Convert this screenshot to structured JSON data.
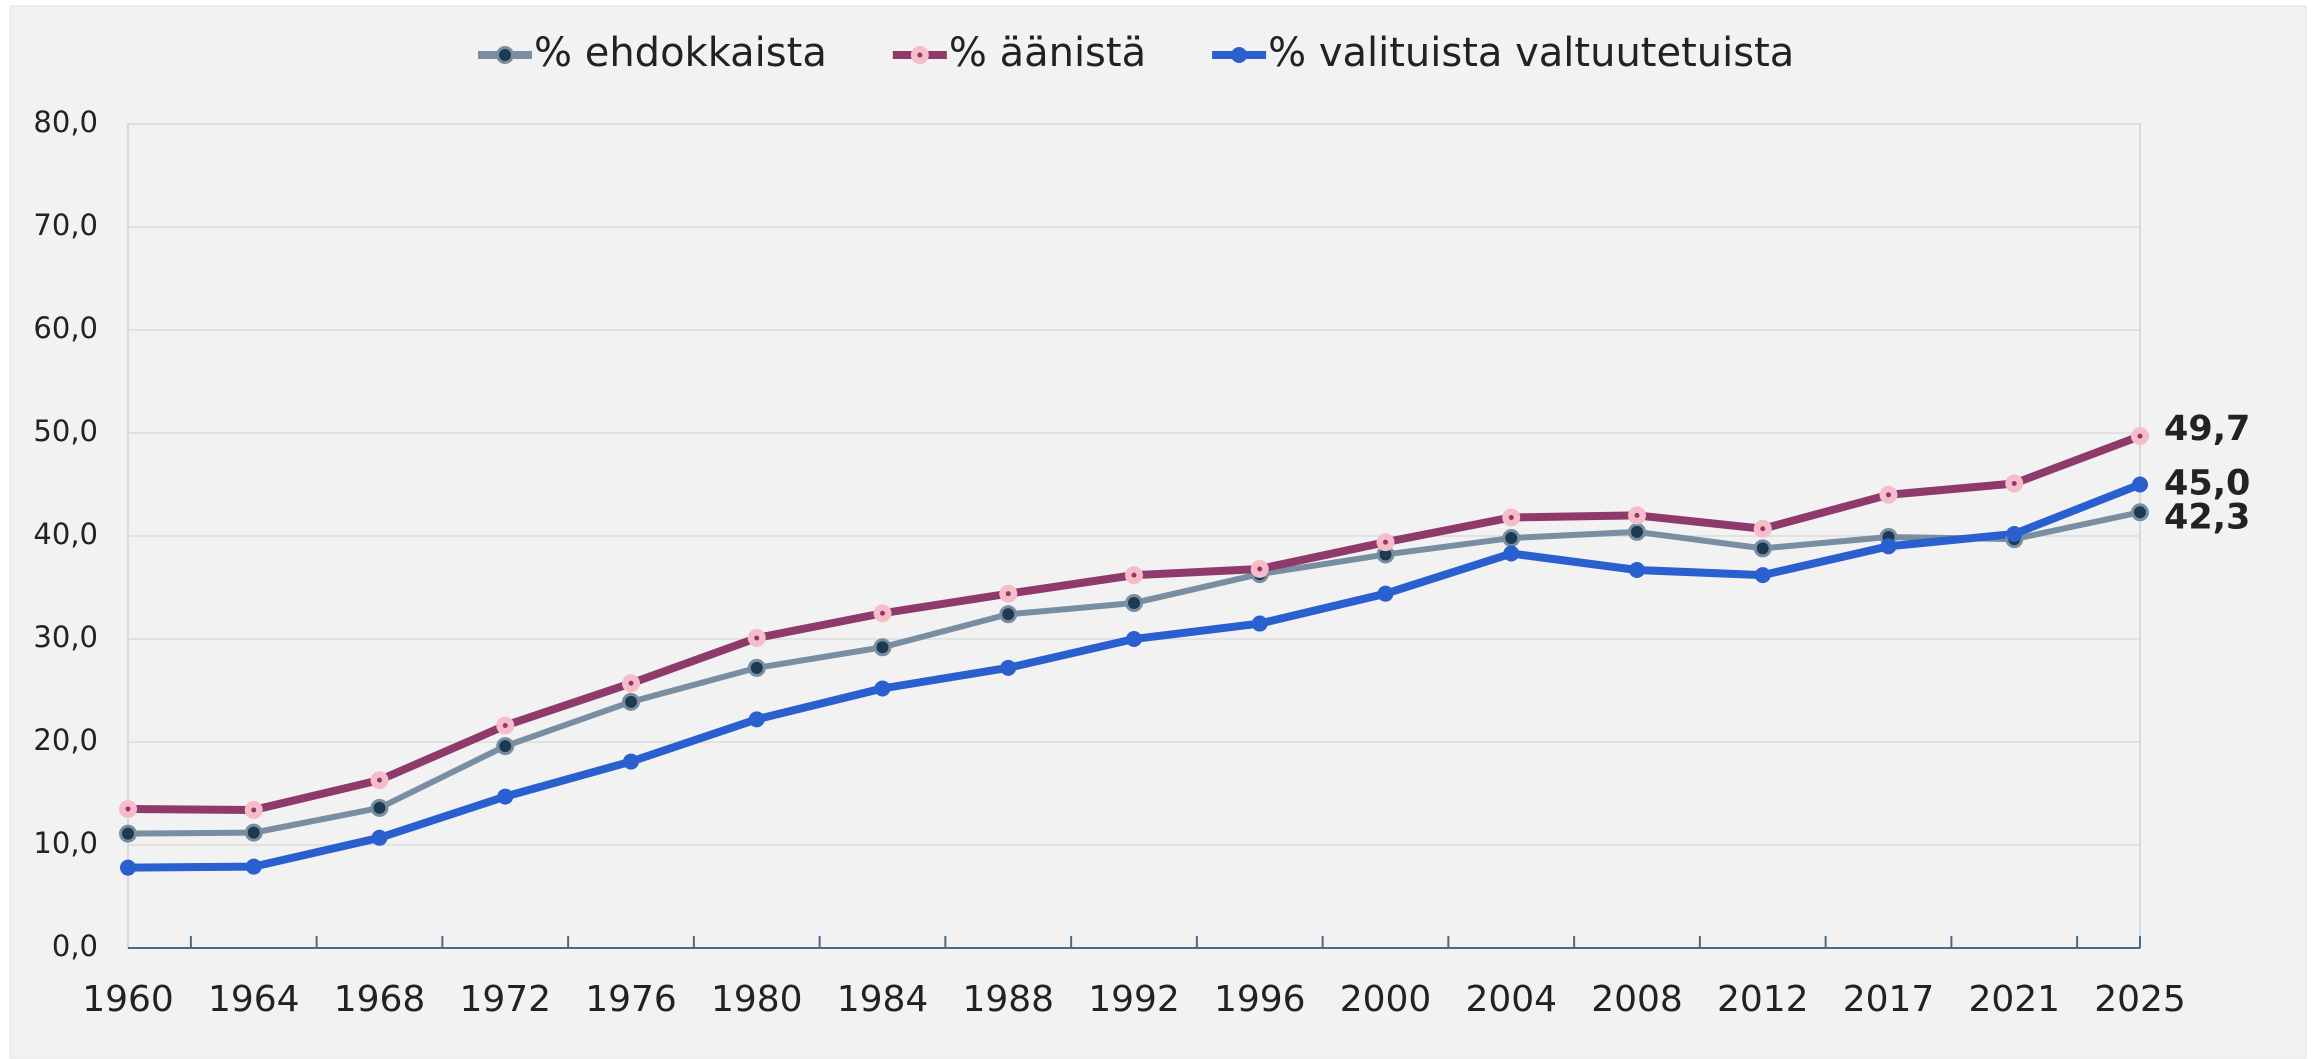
{
  "chart_data": {
    "type": "line",
    "categories": [
      "1960",
      "1964",
      "1968",
      "1972",
      "1976",
      "1980",
      "1984",
      "1988",
      "1992",
      "1996",
      "2000",
      "2004",
      "2008",
      "2012",
      "2017",
      "2021",
      "2025"
    ],
    "series": [
      {
        "name": "% ehdokkaista",
        "color": "#7a8ea2",
        "marker_fill": "#1e3a50",
        "label_color": "#1e4461",
        "values": [
          11.1,
          11.2,
          13.6,
          19.6,
          23.9,
          27.2,
          29.2,
          32.4,
          33.5,
          36.3,
          38.2,
          39.8,
          40.4,
          38.8,
          39.9,
          39.7,
          42.3
        ],
        "value_labels": [
          null,
          null,
          null,
          null,
          null,
          null,
          null,
          null,
          null,
          null,
          null,
          null,
          null,
          null,
          null,
          null,
          "42,3"
        ]
      },
      {
        "name": "% äänistä",
        "color": "#8e3a6b",
        "marker_fill": "#f7bcc9",
        "label_color": "#8e3a6b",
        "values": [
          13.5,
          13.4,
          16.3,
          21.6,
          25.7,
          30.1,
          32.5,
          34.4,
          36.2,
          36.8,
          39.4,
          41.8,
          42.0,
          40.7,
          44.0,
          45.1,
          49.7
        ],
        "value_labels": [
          null,
          null,
          null,
          null,
          null,
          null,
          null,
          null,
          null,
          null,
          null,
          null,
          null,
          null,
          null,
          null,
          "49,7"
        ]
      },
      {
        "name": "% valituista valtuutetuista",
        "color": "#2a5fcf",
        "marker_fill": "#2a5fcf",
        "label_color": "#2a5fcf",
        "values": [
          7.8,
          7.9,
          10.7,
          14.7,
          18.1,
          22.2,
          25.2,
          27.2,
          30.0,
          31.5,
          34.4,
          38.3,
          36.7,
          36.2,
          39.0,
          40.2,
          45.0
        ],
        "value_labels": [
          null,
          null,
          null,
          null,
          null,
          null,
          null,
          null,
          null,
          null,
          null,
          null,
          null,
          null,
          null,
          null,
          "45,0"
        ]
      }
    ],
    "ylim": [
      0,
      80
    ],
    "yticks": [
      {
        "value": 0,
        "label": "0,0"
      },
      {
        "value": 10,
        "label": "10,0"
      },
      {
        "value": 20,
        "label": "20,0"
      },
      {
        "value": 30,
        "label": "30,0"
      },
      {
        "value": 40,
        "label": "40,0"
      },
      {
        "value": 50,
        "label": "50,0"
      },
      {
        "value": 60,
        "label": "60,0"
      },
      {
        "value": 70,
        "label": "70,0"
      },
      {
        "value": 80,
        "label": "80,0"
      }
    ],
    "grid": true,
    "legend": "top"
  }
}
